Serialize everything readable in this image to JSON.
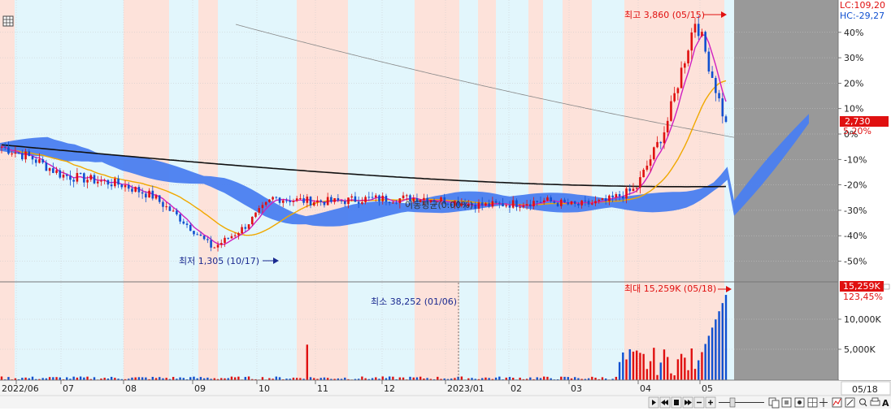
{
  "header": {
    "lc_label": "LC:109,20",
    "hc_label": "HC:-29,27"
  },
  "annotations": {
    "high": "최고 3,860 (05/15)",
    "low": "최저 1,305 (10/17)",
    "ma_label": "이동평균(0.00%)",
    "vol_max": "최대 15,259K (05/18)",
    "vol_min": "최소 38,252 (01/06)"
  },
  "badges": {
    "price": "2,730",
    "price_pct": "5,20%",
    "volume": "15,259K",
    "volume_pct": "123,45%"
  },
  "bottom": {
    "date_box": "05/18",
    "right_label": "A"
  },
  "colors": {
    "up": "#e01010",
    "down": "#1050d0",
    "cloud": "#4a7ef0",
    "ma_orange": "#f0a800",
    "ma_magenta": "#d020c0",
    "ma_black": "#111111",
    "ma_gray": "#888888",
    "shade_pink": "#fde2da",
    "shade_blue": "#e2f6fc",
    "future_gray": "#999999"
  },
  "chart_data": {
    "type": "candlestick",
    "x_labels": [
      "2022/06",
      "07",
      "08",
      "09",
      "10",
      "11",
      "12",
      "2023/01",
      "02",
      "03",
      "04",
      "05"
    ],
    "y_ticks": [
      "40%",
      "30%",
      "20%",
      "10%",
      "0%",
      "-10%",
      "-20%",
      "-30%",
      "-40%",
      "-50%"
    ],
    "volume_ticks": [
      "10,000K",
      "5,000K"
    ],
    "high": 3860,
    "low": 1305,
    "last_close": 2730,
    "last_change_pct": 5.2,
    "volume_max": 15259000,
    "volume_min": 38252,
    "series": [
      {
        "name": "price",
        "values": [
          2500,
          2380,
          2200,
          2150,
          2100,
          1980,
          1720,
          1430,
          1640,
          1960,
          1930,
          1920,
          1950,
          1950,
          1960,
          1920,
          1880,
          1900,
          1930,
          1880,
          1920,
          2050,
          2700,
          3860,
          2730
        ]
      }
    ]
  }
}
